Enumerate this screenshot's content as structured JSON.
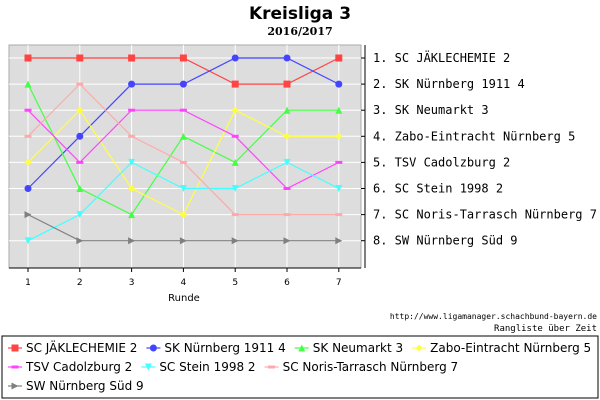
{
  "chart_data": {
    "type": "line",
    "title": "Kreisliga 3",
    "subtitle": "2016/2017",
    "xlabel": "Runde",
    "ylabel": "",
    "x": [
      1,
      2,
      3,
      4,
      5,
      6,
      7
    ],
    "ylim": [
      1,
      8
    ],
    "y_inverted": true,
    "grid": true,
    "legend_position": "bottom",
    "rank_labels": [
      "1. SC JÄKLECHEMIE 2",
      "2. SK Nürnberg 1911 4",
      "3. SK Neumarkt 3",
      "4. Zabo-Eintracht Nürnberg 5",
      "5. TSV Cadolzburg 2",
      "6. SC Stein 1998 2",
      "7. SC Noris-Tarrasch Nürnberg 7",
      "8. SW Nürnberg Süd 9"
    ],
    "series": [
      {
        "name": "SC JÄKLECHEMIE 2",
        "values": [
          1,
          1,
          1,
          1,
          2,
          2,
          1
        ],
        "color": "#ff4444",
        "marker": "square"
      },
      {
        "name": "SK Nürnberg 1911 4",
        "values": [
          6,
          4,
          2,
          2,
          1,
          1,
          2
        ],
        "color": "#4444ff",
        "marker": "circle"
      },
      {
        "name": "SK Neumarkt 3",
        "values": [
          2,
          6,
          7,
          4,
          5,
          3,
          3
        ],
        "color": "#44ff44",
        "marker": "triangle-up"
      },
      {
        "name": "Zabo-Eintracht Nürnberg 5",
        "values": [
          5,
          3,
          6,
          7,
          3,
          4,
          4
        ],
        "color": "#ffff44",
        "marker": "diamond"
      },
      {
        "name": "TSV Cadolzburg 2",
        "values": [
          3,
          5,
          3,
          3,
          4,
          6,
          5
        ],
        "color": "#ff44ff",
        "marker": "bar"
      },
      {
        "name": "SC Stein 1998 2",
        "values": [
          8,
          7,
          5,
          6,
          6,
          5,
          6
        ],
        "color": "#44ffff",
        "marker": "triangle-down"
      },
      {
        "name": "SC Noris-Tarrasch Nürnberg 7",
        "values": [
          4,
          2,
          4,
          5,
          7,
          7,
          7
        ],
        "color": "#ffaaaa",
        "marker": "bar"
      },
      {
        "name": "SW Nürnberg Süd 9",
        "values": [
          7,
          8,
          8,
          8,
          8,
          8,
          8
        ],
        "color": "#808080",
        "marker": "triangle-right"
      }
    ]
  },
  "footer": {
    "source": "http://www.ligamanager.schachbund-bayern.de",
    "caption": "Rangliste über Zeit"
  }
}
